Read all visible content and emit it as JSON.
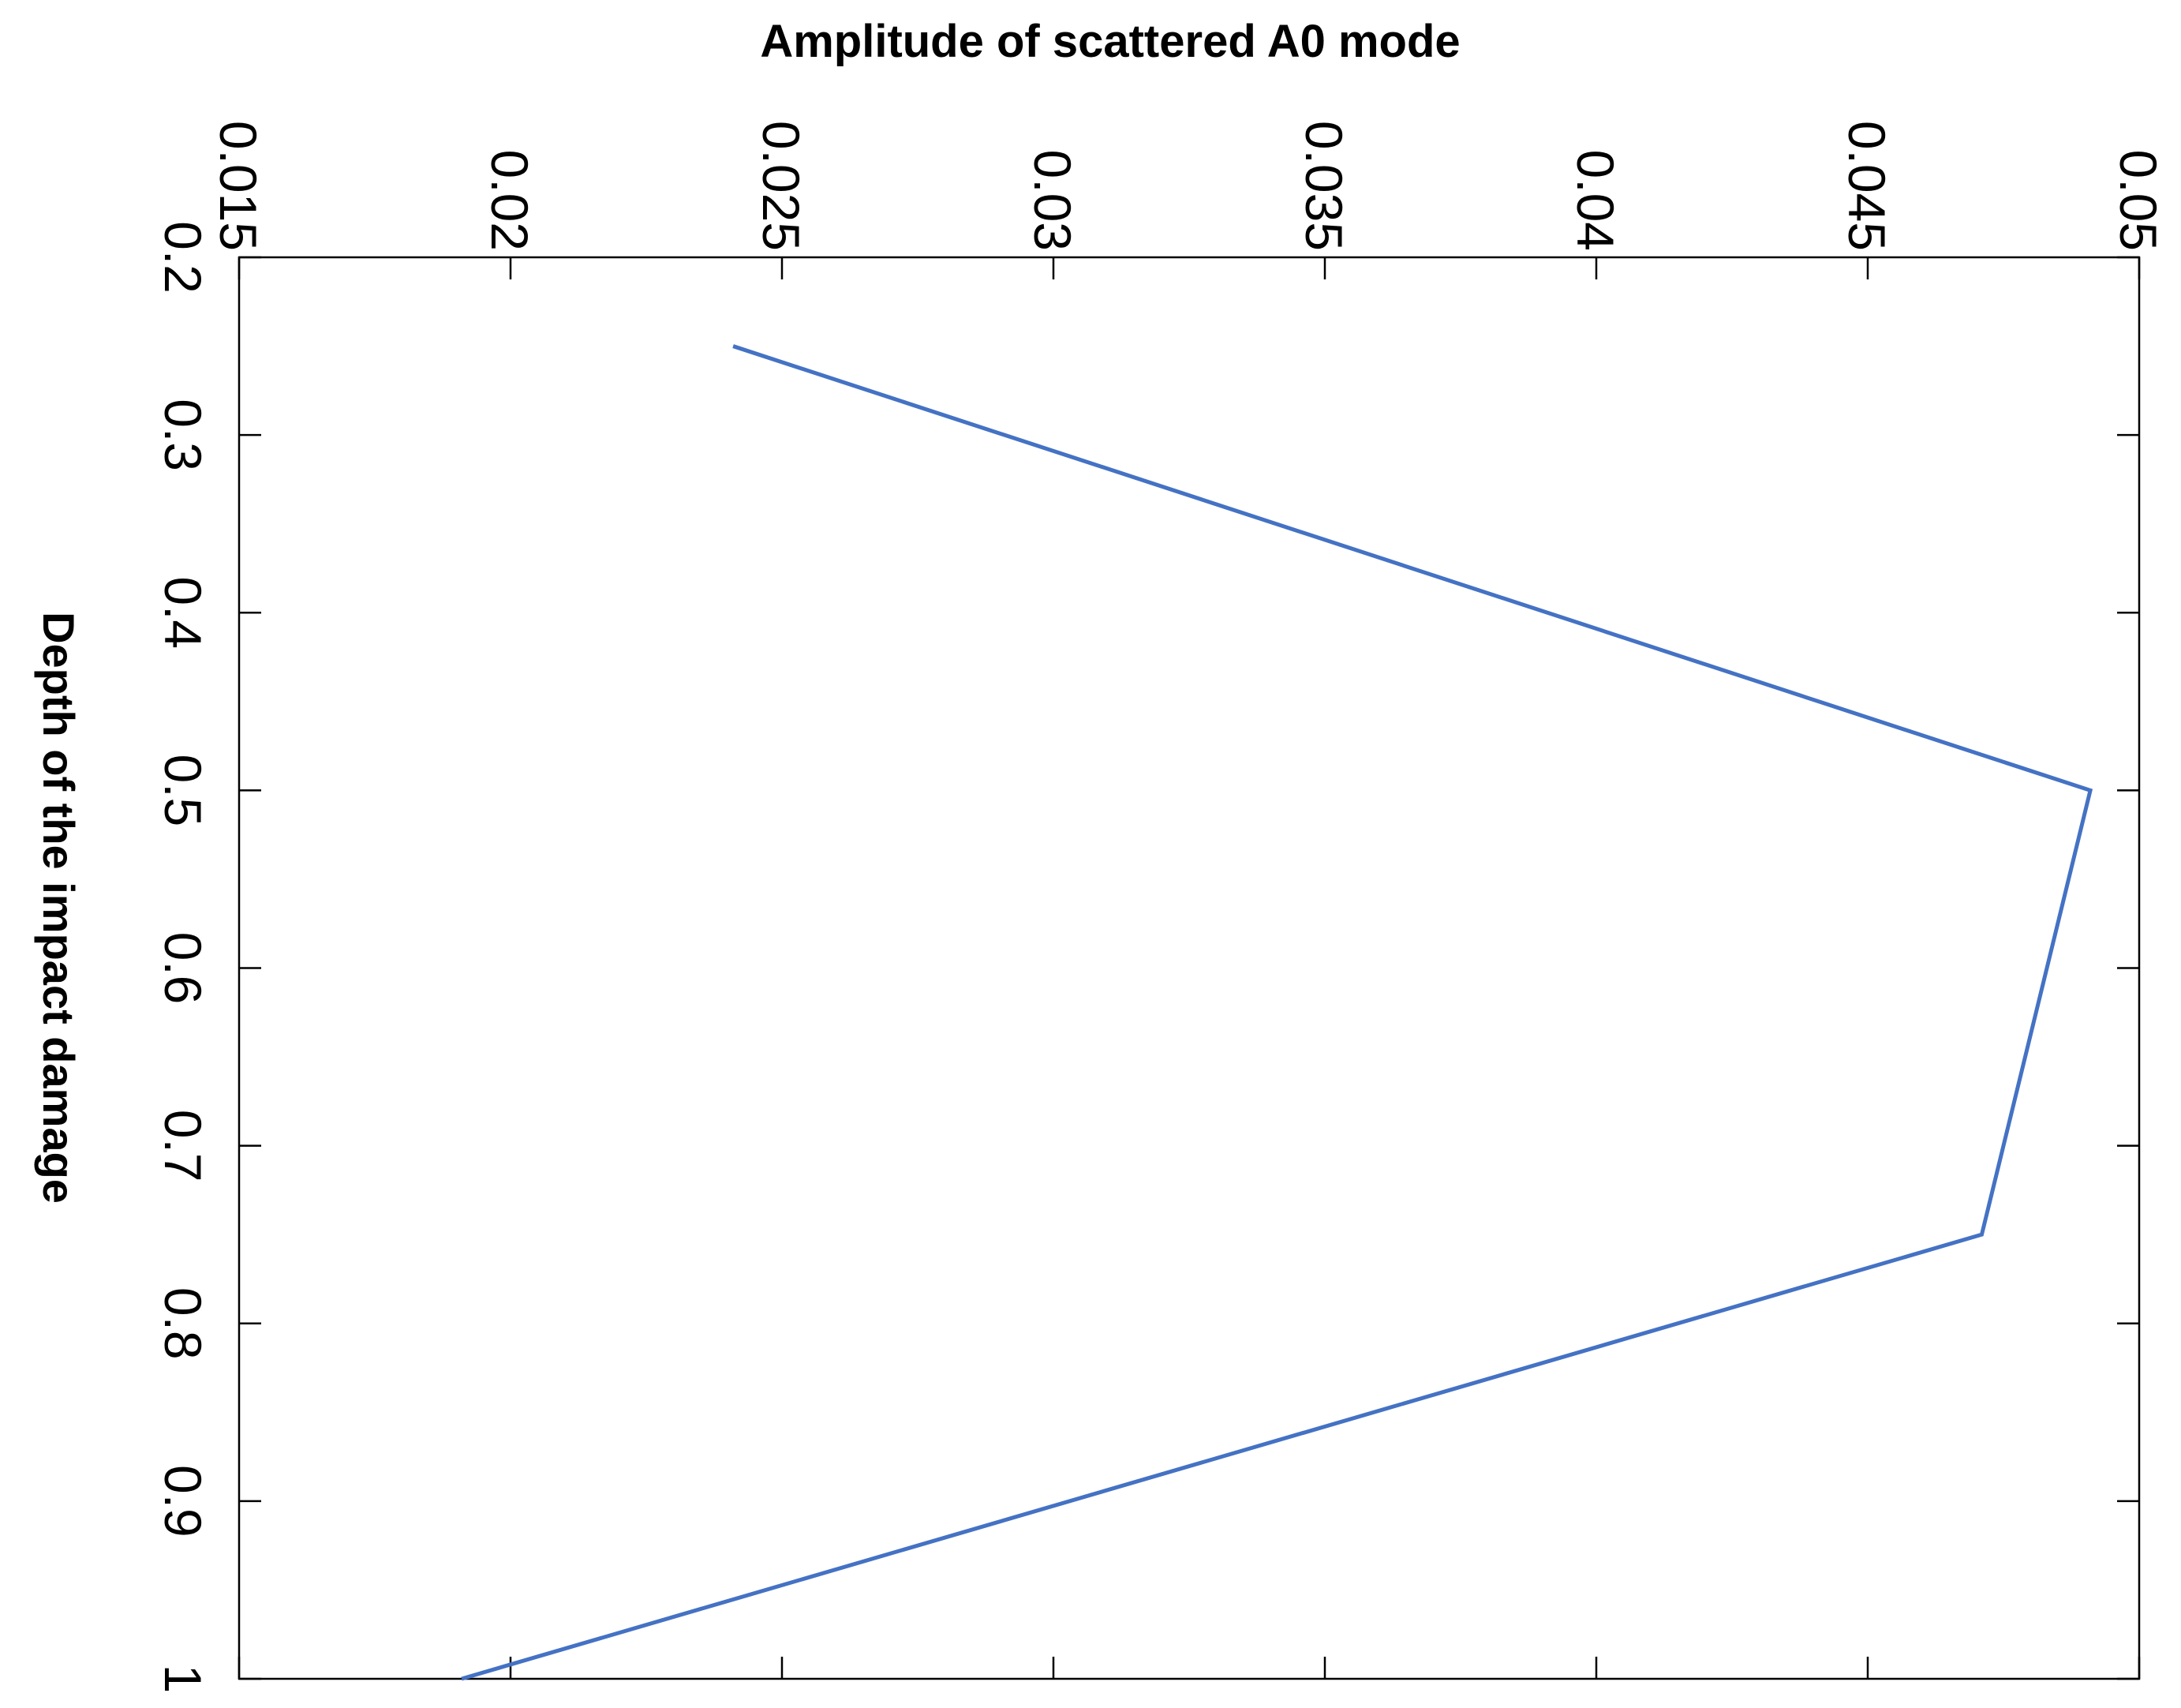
{
  "chart_data": {
    "type": "line",
    "title": "Amplitude of scattered A0 mode",
    "x_label": "Depth of the impact damage",
    "x": [
      0.25,
      0.5,
      0.75,
      1
    ],
    "values": [
      0.0241,
      0.0491,
      0.0471,
      0.0191
    ],
    "color": "#4472c4",
    "xlim": [
      0.2,
      1
    ],
    "xticks": [
      0.2,
      0.3,
      0.4,
      0.5,
      0.6,
      0.7,
      0.8,
      0.9,
      1
    ],
    "ylim": [
      0.015,
      0.05
    ],
    "yticks": [
      0.015,
      0.02,
      0.025,
      0.03,
      0.035,
      0.04,
      0.045,
      0.05
    ],
    "grid": false
  }
}
